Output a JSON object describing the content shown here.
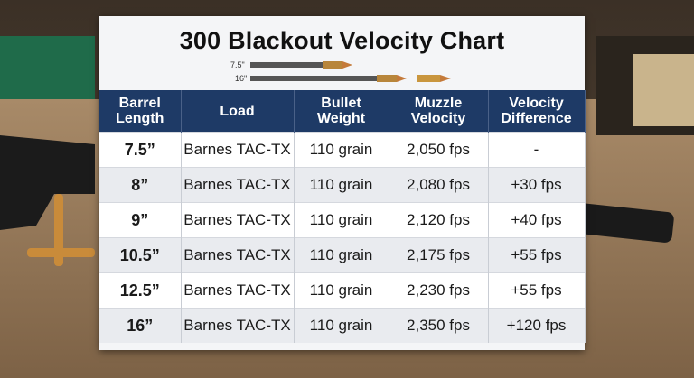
{
  "header": {
    "title": "300 Blackout Velocity Chart",
    "barrel_labels": [
      "7.5\"",
      "16\""
    ]
  },
  "table": {
    "columns": [
      "Barrel Length",
      "Load",
      "Bullet Weight",
      "Muzzle Velocity",
      "Velocity Difference"
    ],
    "rows": [
      [
        "7.5”",
        "Barnes TAC-TX",
        "110 grain",
        "2,050 fps",
        "-"
      ],
      [
        "8”",
        "Barnes TAC-TX",
        "110 grain",
        "2,080 fps",
        "+30 fps"
      ],
      [
        "9”",
        "Barnes TAC-TX",
        "110 grain",
        "2,120 fps",
        "+40 fps"
      ],
      [
        "10.5”",
        "Barnes TAC-TX",
        "110 grain",
        "2,175 fps",
        "+55 fps"
      ],
      [
        "12.5”",
        "Barnes TAC-TX",
        "110 grain",
        "2,230 fps",
        "+55 fps"
      ],
      [
        "16”",
        "Barnes TAC-TX",
        "110 grain",
        "2,350 fps",
        "+120 fps"
      ]
    ]
  }
}
